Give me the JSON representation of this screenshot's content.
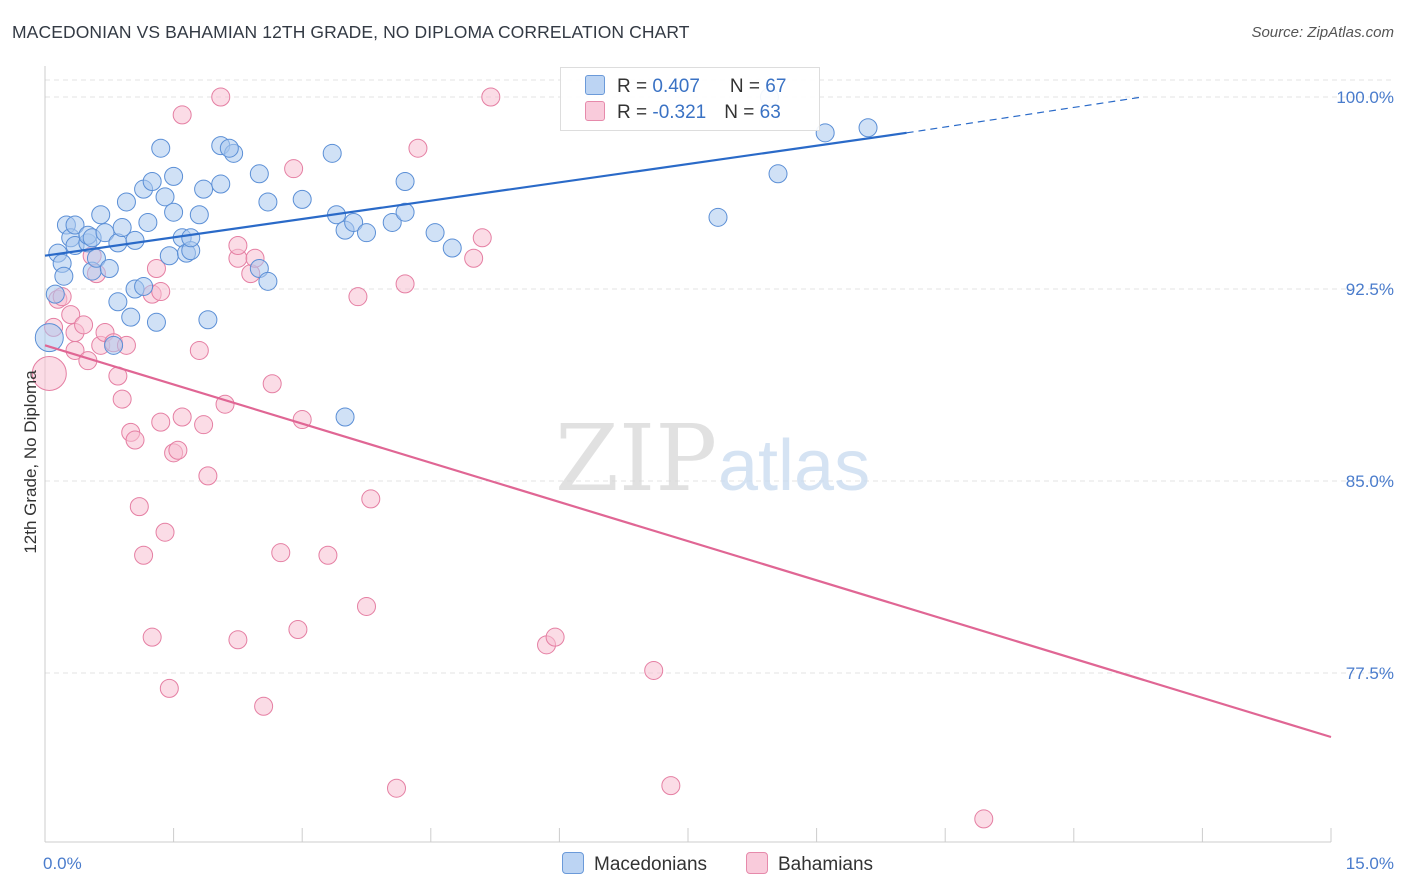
{
  "title": "MACEDONIAN VS BAHAMIAN 12TH GRADE, NO DIPLOMA CORRELATION CHART",
  "source": "Source: ZipAtlas.com",
  "watermark": {
    "zip": "ZIP",
    "atlas": "atlas"
  },
  "colors": {
    "blue_fill": "#a9c8ee",
    "blue_stroke": "#5b8fd6",
    "blue_line": "#2a6ac8",
    "pink_fill": "#f7bfd2",
    "pink_stroke": "#e57fa3",
    "pink_line": "#e06694",
    "grid": "#e3e3e3",
    "tick_label": "#4a7ccc"
  },
  "legend": {
    "rows": [
      {
        "r_label": "R = ",
        "r_value": "0.407",
        "n_label": "N = ",
        "n_value": "67"
      },
      {
        "r_label": "R = ",
        "r_value": "-0.321",
        "n_label": "N = ",
        "n_value": "63"
      }
    ]
  },
  "chart_data": {
    "type": "scatter",
    "title": "MACEDONIAN VS BAHAMIAN 12TH GRADE, NO DIPLOMA CORRELATION CHART",
    "xlabel": "",
    "ylabel": "12th Grade, No Diploma",
    "xlim": [
      0,
      15
    ],
    "ylim": [
      71.0,
      100.8
    ],
    "x_tick_labels": [
      "0.0%",
      "15.0%"
    ],
    "y_ticks": [
      77.5,
      85.0,
      92.5,
      100.0
    ],
    "y_tick_labels": [
      "77.5%",
      "85.0%",
      "92.5%",
      "100.0%"
    ],
    "grid": true,
    "legend_position": "top-center",
    "series": [
      {
        "name": "Macedonians",
        "color": "#a9c8ee",
        "trend": {
          "x": [
            0,
            10.05
          ],
          "y": [
            93.8,
            98.6
          ],
          "dashed_to": [
            12.8,
            100.0
          ]
        },
        "points": [
          [
            0.05,
            90.6
          ],
          [
            0.12,
            92.3
          ],
          [
            0.15,
            93.9
          ],
          [
            0.2,
            93.5
          ],
          [
            0.22,
            93.0
          ],
          [
            0.25,
            95.0
          ],
          [
            0.3,
            94.5
          ],
          [
            0.35,
            94.2
          ],
          [
            0.35,
            95.0
          ],
          [
            0.5,
            94.3
          ],
          [
            0.5,
            94.6
          ],
          [
            0.55,
            94.5
          ],
          [
            0.55,
            93.2
          ],
          [
            0.6,
            93.7
          ],
          [
            0.65,
            95.4
          ],
          [
            0.7,
            94.7
          ],
          [
            0.75,
            93.3
          ],
          [
            0.8,
            90.3
          ],
          [
            0.85,
            94.3
          ],
          [
            0.85,
            92.0
          ],
          [
            0.9,
            94.9
          ],
          [
            0.95,
            95.9
          ],
          [
            1.0,
            91.4
          ],
          [
            1.05,
            94.4
          ],
          [
            1.05,
            92.5
          ],
          [
            1.15,
            92.6
          ],
          [
            1.15,
            96.4
          ],
          [
            1.25,
            96.7
          ],
          [
            1.2,
            95.1
          ],
          [
            1.3,
            91.2
          ],
          [
            1.35,
            98.0
          ],
          [
            1.4,
            96.1
          ],
          [
            1.45,
            93.8
          ],
          [
            1.5,
            95.5
          ],
          [
            1.5,
            96.9
          ],
          [
            1.6,
            94.5
          ],
          [
            1.65,
            93.9
          ],
          [
            1.7,
            94.0
          ],
          [
            1.7,
            94.5
          ],
          [
            1.8,
            95.4
          ],
          [
            1.85,
            96.4
          ],
          [
            1.9,
            91.3
          ],
          [
            2.05,
            98.1
          ],
          [
            2.05,
            96.6
          ],
          [
            2.2,
            97.8
          ],
          [
            2.15,
            98.0
          ],
          [
            2.5,
            97.0
          ],
          [
            2.6,
            95.9
          ],
          [
            2.5,
            93.3
          ],
          [
            2.6,
            92.8
          ],
          [
            3.0,
            96.0
          ],
          [
            3.35,
            97.8
          ],
          [
            3.4,
            95.4
          ],
          [
            3.5,
            94.8
          ],
          [
            3.5,
            87.5
          ],
          [
            3.6,
            95.1
          ],
          [
            3.75,
            94.7
          ],
          [
            4.05,
            95.1
          ],
          [
            4.2,
            95.5
          ],
          [
            4.2,
            96.7
          ],
          [
            4.55,
            94.7
          ],
          [
            4.75,
            94.1
          ],
          [
            7.85,
            95.3
          ],
          [
            8.45,
            100.0
          ],
          [
            8.55,
            97.0
          ],
          [
            9.1,
            98.6
          ],
          [
            9.6,
            98.8
          ]
        ]
      },
      {
        "name": "Bahamians",
        "color": "#f7bfd2",
        "trend": {
          "x": [
            0,
            15
          ],
          "y": [
            90.3,
            75.0
          ]
        },
        "points": [
          [
            0.05,
            89.2
          ],
          [
            0.1,
            91.0
          ],
          [
            0.15,
            92.1
          ],
          [
            0.2,
            92.2
          ],
          [
            0.3,
            91.5
          ],
          [
            0.35,
            90.8
          ],
          [
            0.35,
            90.1
          ],
          [
            0.45,
            91.1
          ],
          [
            0.5,
            89.7
          ],
          [
            0.55,
            93.8
          ],
          [
            0.6,
            93.1
          ],
          [
            0.65,
            90.3
          ],
          [
            0.7,
            90.8
          ],
          [
            0.8,
            90.4
          ],
          [
            0.85,
            89.1
          ],
          [
            0.9,
            88.2
          ],
          [
            0.95,
            90.3
          ],
          [
            1.0,
            86.9
          ],
          [
            1.05,
            86.6
          ],
          [
            1.1,
            84.0
          ],
          [
            1.15,
            82.1
          ],
          [
            1.25,
            92.3
          ],
          [
            1.3,
            93.3
          ],
          [
            1.25,
            78.9
          ],
          [
            1.35,
            92.4
          ],
          [
            1.35,
            87.3
          ],
          [
            1.4,
            83.0
          ],
          [
            1.45,
            76.9
          ],
          [
            1.5,
            86.1
          ],
          [
            1.55,
            86.2
          ],
          [
            1.6,
            99.3
          ],
          [
            1.6,
            87.5
          ],
          [
            1.8,
            90.1
          ],
          [
            1.85,
            87.2
          ],
          [
            1.9,
            85.2
          ],
          [
            2.05,
            100.0
          ],
          [
            2.1,
            88.0
          ],
          [
            2.25,
            93.7
          ],
          [
            2.25,
            94.2
          ],
          [
            2.25,
            78.8
          ],
          [
            2.4,
            93.1
          ],
          [
            2.45,
            93.7
          ],
          [
            2.55,
            76.2
          ],
          [
            2.65,
            88.8
          ],
          [
            2.75,
            82.2
          ],
          [
            2.9,
            97.2
          ],
          [
            2.95,
            79.2
          ],
          [
            3.0,
            87.4
          ],
          [
            3.3,
            82.1
          ],
          [
            3.65,
            92.2
          ],
          [
            3.75,
            80.1
          ],
          [
            3.8,
            84.3
          ],
          [
            4.1,
            73.0
          ],
          [
            4.2,
            92.7
          ],
          [
            4.35,
            98.0
          ],
          [
            5.0,
            93.7
          ],
          [
            5.1,
            94.5
          ],
          [
            5.2,
            100.0
          ],
          [
            5.85,
            78.6
          ],
          [
            5.95,
            78.9
          ],
          [
            7.1,
            77.6
          ],
          [
            7.3,
            73.1
          ],
          [
            10.95,
            71.8
          ]
        ]
      }
    ]
  },
  "bottom_legend": [
    {
      "label": "Macedonians",
      "color": "#a9c8ee"
    },
    {
      "label": "Bahamians",
      "color": "#f7bfd2"
    }
  ]
}
